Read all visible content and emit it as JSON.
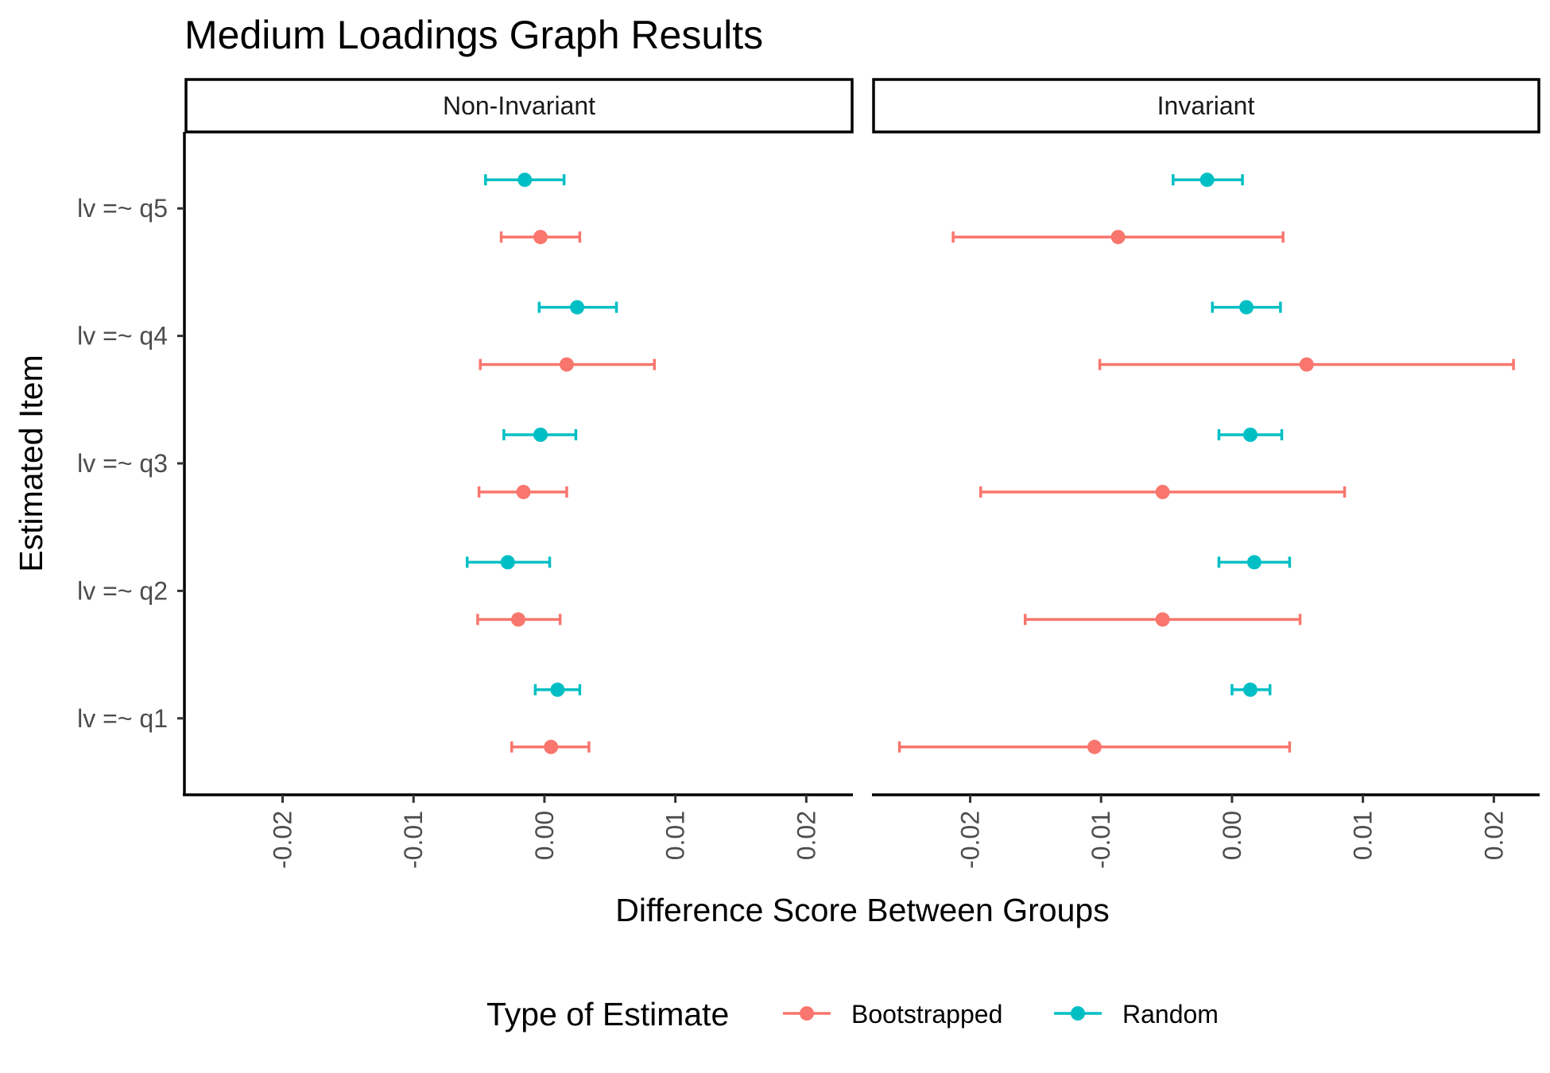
{
  "chart_data": {
    "type": "scatter",
    "subtype": "point-range",
    "title": "Medium Loadings Graph Results",
    "xlabel": "Difference Score Between Groups",
    "ylabel": "Estimated Item",
    "xlim": [
      -0.0275,
      0.0235
    ],
    "x_ticks": [
      -0.02,
      -0.01,
      0.0,
      0.01,
      0.02
    ],
    "x_tick_labels": [
      "-0.02",
      "-0.01",
      "0.00",
      "0.01",
      "0.02"
    ],
    "categories": [
      "lv =~ q1",
      "lv =~ q2",
      "lv =~ q3",
      "lv =~ q4",
      "lv =~ q5"
    ],
    "grid": false,
    "legend": {
      "title": "Type of Estimate",
      "position": "bottom",
      "entries": [
        {
          "name": "Bootstrapped",
          "color": "#F8766D"
        },
        {
          "name": "Random",
          "color": "#00BFC4"
        }
      ]
    },
    "panels": [
      {
        "label": "Non-Invariant",
        "series": [
          {
            "name": "Bootstrapped",
            "color": "#F8766D",
            "points": [
              {
                "category": "lv =~ q1",
                "x": 0.0005,
                "low": -0.0025,
                "high": 0.0034
              },
              {
                "category": "lv =~ q2",
                "x": -0.002,
                "low": -0.0051,
                "high": 0.0012
              },
              {
                "category": "lv =~ q3",
                "x": -0.0016,
                "low": -0.005,
                "high": 0.0017
              },
              {
                "category": "lv =~ q4",
                "x": 0.0017,
                "low": -0.0049,
                "high": 0.0084
              },
              {
                "category": "lv =~ q5",
                "x": -0.0003,
                "low": -0.0033,
                "high": 0.0027
              }
            ]
          },
          {
            "name": "Random",
            "color": "#00BFC4",
            "points": [
              {
                "category": "lv =~ q1",
                "x": 0.001,
                "low": -0.0007,
                "high": 0.0027
              },
              {
                "category": "lv =~ q2",
                "x": -0.0028,
                "low": -0.0059,
                "high": 0.0004
              },
              {
                "category": "lv =~ q3",
                "x": -0.0003,
                "low": -0.0031,
                "high": 0.0024
              },
              {
                "category": "lv =~ q4",
                "x": 0.0025,
                "low": -0.0004,
                "high": 0.0055
              },
              {
                "category": "lv =~ q5",
                "x": -0.0015,
                "low": -0.0045,
                "high": 0.0015
              }
            ]
          }
        ]
      },
      {
        "label": "Invariant",
        "series": [
          {
            "name": "Bootstrapped",
            "color": "#F8766D",
            "points": [
              {
                "category": "lv =~ q1",
                "x": -0.0105,
                "low": -0.0254,
                "high": 0.0044
              },
              {
                "category": "lv =~ q2",
                "x": -0.0053,
                "low": -0.0158,
                "high": 0.0052
              },
              {
                "category": "lv =~ q3",
                "x": -0.0053,
                "low": -0.0192,
                "high": 0.0086
              },
              {
                "category": "lv =~ q4",
                "x": 0.0057,
                "low": -0.0101,
                "high": 0.0215
              },
              {
                "category": "lv =~ q5",
                "x": -0.0087,
                "low": -0.0213,
                "high": 0.0039
              }
            ]
          },
          {
            "name": "Random",
            "color": "#00BFC4",
            "points": [
              {
                "category": "lv =~ q1",
                "x": 0.0014,
                "low": 0.0,
                "high": 0.0029
              },
              {
                "category": "lv =~ q2",
                "x": 0.0017,
                "low": -0.001,
                "high": 0.0044
              },
              {
                "category": "lv =~ q3",
                "x": 0.0014,
                "low": -0.001,
                "high": 0.0038
              },
              {
                "category": "lv =~ q4",
                "x": 0.0011,
                "low": -0.0015,
                "high": 0.0037
              },
              {
                "category": "lv =~ q5",
                "x": -0.0019,
                "low": -0.0045,
                "high": 0.0008
              }
            ]
          }
        ]
      }
    ]
  }
}
